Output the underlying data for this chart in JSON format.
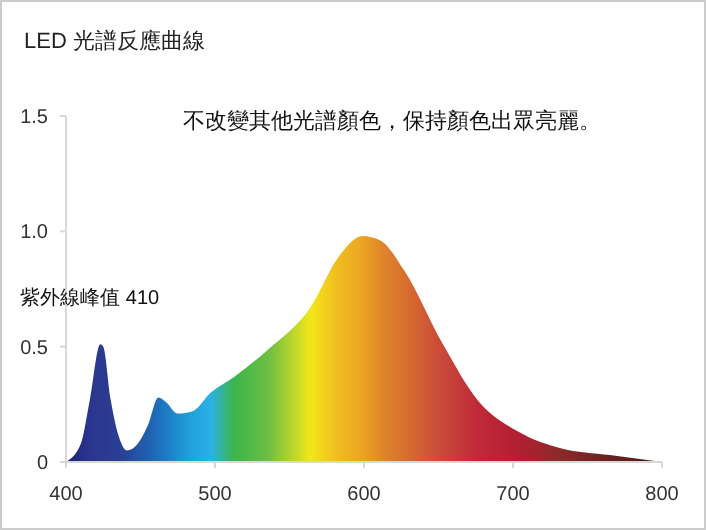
{
  "chart_data": {
    "type": "area",
    "title": "LED 光譜反應曲線",
    "x": [
      400,
      410,
      416,
      423,
      425,
      430,
      436,
      441,
      447,
      455,
      462,
      467,
      475,
      485,
      497,
      513,
      536,
      564,
      583,
      599,
      611,
      627,
      653,
      676,
      704,
      732,
      765,
      800
    ],
    "series": [
      {
        "values": [
          0,
          0.08,
          0.27,
          0.51,
          0.5,
          0.27,
          0.1,
          0.05,
          0.07,
          0.16,
          0.28,
          0.26,
          0.21,
          0.22,
          0.3,
          0.37,
          0.49,
          0.67,
          0.89,
          0.98,
          0.96,
          0.83,
          0.51,
          0.27,
          0.13,
          0.06,
          0.03,
          0
        ],
        "colors": [
          "#1b1f6e",
          "#252f85",
          "#2a3590",
          "#2b3990",
          "#2b3990",
          "#2a3c92",
          "#283f94",
          "#274597",
          "#2553a3",
          "#1f5fae",
          "#1f6fbc",
          "#1f7ac3",
          "#1e8fd0",
          "#22a3dd",
          "#2bb1e6",
          "#3cb54a",
          "#6dbe45",
          "#f2e61a",
          "#f0bb1f",
          "#eba523",
          "#e0882a",
          "#d8702e",
          "#c9473a",
          "#c02a38",
          "#b21f32",
          "#8a2a2a",
          "#6b2020",
          "#4a1a1a"
        ]
      }
    ],
    "xlim": [
      400,
      800
    ],
    "xticks": [
      400,
      500,
      600,
      700,
      800
    ],
    "ylim": [
      0,
      1.5
    ],
    "yticks": [
      0,
      {
        "value": 0.5,
        "label": "0.5"
      },
      {
        "value": 1,
        "label": "1.0"
      },
      1.5
    ],
    "grid": false,
    "annotations": [
      "不改變其他光譜顏色，保持顏色出眾亮麗。",
      {
        "text": "紫外線峰值 410",
        "x": 423,
        "y": 0.51
      }
    ]
  }
}
